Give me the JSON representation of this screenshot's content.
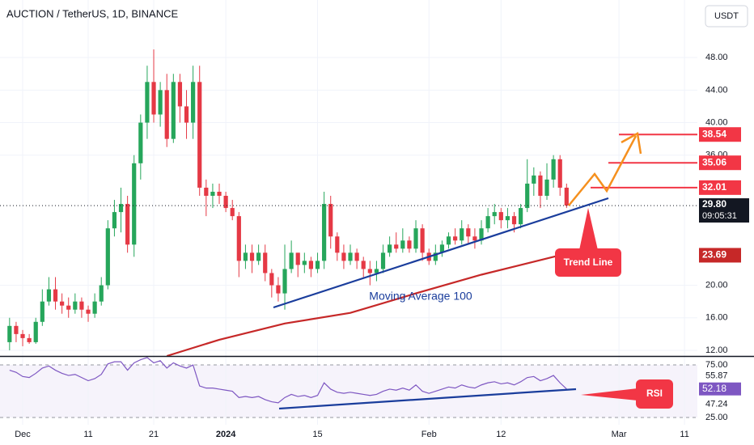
{
  "header": {
    "title": "AUCTION / TetherUS, 1D, BINANCE",
    "currency": "USDT"
  },
  "chart_data": [
    {
      "type": "candlestick",
      "x": [
        -2,
        -1,
        0,
        1,
        2,
        3,
        4,
        5,
        6,
        7,
        8,
        9,
        10,
        11,
        12,
        13,
        14,
        15,
        16,
        17,
        18,
        19,
        20,
        21,
        22,
        23,
        24,
        25,
        26,
        27,
        28,
        29,
        30,
        31,
        32,
        33,
        34,
        35,
        36,
        37,
        38,
        39,
        40,
        41,
        42,
        43,
        44,
        45,
        46,
        47,
        48,
        49,
        50,
        51,
        52,
        53,
        54,
        55,
        56,
        57,
        58,
        59,
        60,
        61,
        62,
        63,
        64,
        65,
        66,
        67,
        68,
        69,
        70,
        71,
        72,
        73,
        74,
        75,
        76,
        77,
        78,
        79,
        80,
        81,
        82,
        83
      ],
      "open": [
        13,
        15,
        14,
        13.5,
        13,
        15.5,
        18,
        19.5,
        18,
        17.5,
        17,
        18,
        17,
        16.5,
        18,
        20,
        27,
        29,
        30,
        25,
        35,
        40,
        45,
        41,
        44,
        38,
        45,
        42,
        40,
        45,
        32,
        31,
        31.5,
        31,
        29.5,
        28.5,
        23,
        24,
        23,
        24,
        21.5,
        20,
        19,
        22,
        24,
        22.5,
        23,
        22,
        23,
        30,
        26,
        24,
        23,
        24,
        23,
        22,
        21.5,
        22,
        24,
        25,
        24.5,
        25.5,
        24.5,
        27,
        24,
        23,
        24,
        25,
        26,
        25.5,
        27,
        26,
        25.5,
        27,
        28.5,
        29,
        28,
        28.5,
        27.5,
        29.5,
        32.5,
        33.5,
        31,
        33,
        35.5,
        32
      ],
      "high": [
        16,
        15.5,
        14.5,
        14,
        16,
        19.5,
        21,
        21,
        19,
        18.5,
        19,
        18.5,
        17.5,
        19,
        21,
        28,
        30.5,
        32,
        31,
        36,
        41,
        47,
        49,
        45,
        46,
        46,
        46,
        44,
        47,
        47,
        33,
        32.5,
        32.5,
        31.5,
        30.5,
        29,
        25,
        25,
        25,
        25,
        22,
        21,
        25,
        25.5,
        24,
        24,
        23.5,
        24,
        31.5,
        31,
        26.5,
        25,
        25,
        24.5,
        23.5,
        23,
        23,
        25,
        26,
        26.5,
        27,
        26,
        28,
        27.5,
        24.5,
        25,
        25.5,
        26.5,
        27,
        28,
        27.5,
        27,
        28,
        29.5,
        30,
        29.5,
        29.5,
        29,
        30,
        35.5,
        34.5,
        34,
        35,
        36,
        36,
        32.5
      ],
      "low": [
        12,
        13,
        12.5,
        12.8,
        12.8,
        15,
        17.5,
        17,
        16.5,
        16,
        16.5,
        16,
        15.5,
        16,
        17.5,
        19.5,
        26,
        26.5,
        24,
        23.5,
        33,
        38,
        40,
        39.5,
        37,
        37.5,
        40,
        38,
        38,
        31,
        28.5,
        29.5,
        30,
        29,
        28,
        21,
        22,
        21.5,
        22.5,
        20.5,
        18.5,
        18,
        17,
        21.5,
        21,
        21.5,
        21,
        21.5,
        22,
        24.5,
        23,
        22,
        22.5,
        22,
        21,
        20,
        20.5,
        21.5,
        23.5,
        24,
        24,
        24,
        24,
        23,
        22.5,
        22.5,
        23.5,
        24.5,
        25,
        25,
        25,
        24.5,
        25,
        26.5,
        27.5,
        27,
        27,
        26.5,
        27,
        29,
        31,
        29.5,
        30.5,
        32,
        31,
        29.5
      ],
      "close": [
        15,
        14,
        13.5,
        13,
        15.5,
        18,
        19.5,
        18,
        17.5,
        17,
        18,
        17,
        16.5,
        18,
        20,
        27,
        29,
        30,
        25,
        35,
        40,
        45,
        41,
        44,
        38,
        45,
        42,
        40,
        45,
        32,
        31,
        31.5,
        31,
        29.5,
        28.5,
        23,
        24,
        23,
        24,
        21.5,
        20,
        19,
        22,
        24,
        22.5,
        23,
        22,
        23,
        30,
        26,
        24,
        23,
        24,
        23,
        22,
        21.5,
        22,
        24,
        25,
        24.5,
        25.5,
        24.5,
        27,
        24,
        23,
        24,
        25,
        26,
        25.5,
        27,
        26,
        25.5,
        27,
        28.5,
        29,
        28,
        28.5,
        27.5,
        29.5,
        32.5,
        33.5,
        31,
        33,
        35.5,
        32,
        29.8
      ],
      "up_color": "#26a65b",
      "down_color": "#e53945",
      "xlim": [
        -3.46,
        102.96
      ],
      "xticks": [
        {
          "value": 0,
          "label": "Dec"
        },
        {
          "value": 10,
          "label": "11"
        },
        {
          "value": 20,
          "label": "21"
        },
        {
          "value": 31,
          "label": "2024"
        },
        {
          "value": 45,
          "label": "15"
        },
        {
          "value": 62,
          "label": "Feb"
        },
        {
          "value": 73,
          "label": "12"
        },
        {
          "value": 91,
          "label": "Mar"
        },
        {
          "value": 101,
          "label": "11"
        }
      ],
      "ylim": [
        11.3,
        55.08
      ],
      "yticks": [
        {
          "value": 12,
          "label": "12.00"
        },
        {
          "value": 16,
          "label": "16.00"
        },
        {
          "value": 20,
          "label": "20.00"
        },
        {
          "value": 36,
          "label": "36.00"
        },
        {
          "value": 40,
          "label": "40.00"
        },
        {
          "value": 44,
          "label": "44.00"
        },
        {
          "value": 48,
          "label": "48.00"
        }
      ],
      "grid": true,
      "ma": {
        "name": "Moving Average 100",
        "color": "#c62828",
        "x": [
          22,
          30,
          40,
          50,
          60,
          70,
          82
        ],
        "values": [
          11.3,
          13.3,
          15.3,
          16.6,
          19,
          21.3,
          23.69
        ]
      },
      "levels": [
        38.54,
        35.06,
        32.01
      ],
      "level_color": "#f23645",
      "last_price": {
        "value": 29.8,
        "label": "29.80"
      },
      "countdown": "09:05:31",
      "annotations": [
        "Trend Line"
      ]
    },
    {
      "type": "line",
      "x": [
        -2,
        -1,
        0,
        1,
        2,
        3,
        4,
        5,
        6,
        7,
        8,
        9,
        10,
        11,
        12,
        13,
        14,
        15,
        16,
        17,
        18,
        19,
        20,
        21,
        22,
        23,
        24,
        25,
        26,
        27,
        28,
        29,
        30,
        31,
        32,
        33,
        34,
        35,
        36,
        37,
        38,
        39,
        40,
        41,
        42,
        43,
        44,
        45,
        46,
        47,
        48,
        49,
        50,
        51,
        52,
        53,
        54,
        55,
        56,
        57,
        58,
        59,
        60,
        61,
        62,
        63,
        64,
        65,
        66,
        67,
        68,
        69,
        70,
        71,
        72,
        73,
        74,
        75,
        76,
        77,
        78,
        79,
        80,
        81,
        82,
        83
      ],
      "series": [
        {
          "name": "RSI",
          "color": "#7e57c2",
          "values": [
            70,
            68,
            64,
            63,
            67,
            72,
            74,
            70,
            67,
            65,
            66,
            63,
            60,
            62,
            66,
            76,
            78,
            78,
            70,
            77,
            80,
            82,
            77,
            79,
            72,
            77,
            74,
            72,
            75,
            55,
            53,
            53,
            52,
            51,
            50,
            44,
            45,
            44,
            45,
            42,
            40,
            39,
            44,
            47,
            45,
            46,
            44,
            46,
            58,
            52,
            49,
            48,
            49,
            48,
            47,
            46,
            47,
            50,
            52,
            51,
            53,
            51,
            56,
            50,
            48,
            50,
            52,
            54,
            53,
            56,
            54,
            53,
            56,
            58,
            59,
            57,
            58,
            56,
            59,
            63,
            64,
            60,
            62,
            65,
            58,
            52.18
          ]
        }
      ],
      "xlim": [
        -3.46,
        102.96
      ],
      "ylim": [
        18.1,
        83.5
      ],
      "yticks": [
        {
          "value": 75,
          "label": "75.00"
        },
        {
          "value": 25,
          "label": "25.00"
        }
      ],
      "markers": [
        55.87,
        47.24
      ]
    }
  ]
}
